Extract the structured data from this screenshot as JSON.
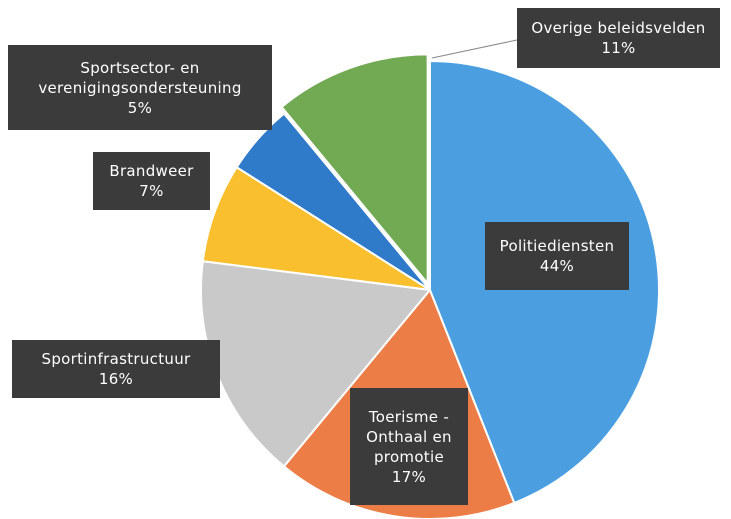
{
  "chart_data": {
    "type": "pie",
    "categories": [
      "Politiediensten",
      "Toerisme - Onthaal en promotie",
      "Sportinfrastructuur",
      "Brandweer",
      "Sportsector- en verenigingsondersteuning",
      "Overige beleidsvelden"
    ],
    "values": [
      44,
      17,
      16,
      7,
      5,
      11
    ],
    "value_labels": [
      "44%",
      "17%",
      "16%",
      "7%",
      "5%",
      "11%"
    ],
    "colors": [
      "#4b9fe1",
      "#ec7d46",
      "#c9c9c9",
      "#f9bf2e",
      "#2f7ac9",
      "#72a953"
    ]
  }
}
